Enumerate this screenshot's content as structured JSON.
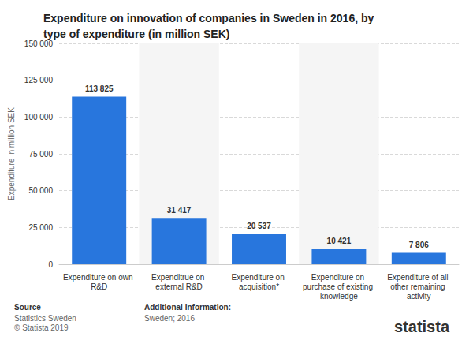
{
  "chart_data": {
    "type": "bar",
    "title": "Expenditure on innovation of companies in Sweden in 2016, by type of expenditure (in million SEK)",
    "y_label": "Expenditure in million SEK",
    "categories": [
      "Expenditure on own R&D",
      "Expenditrue on external R&D",
      "Expenditure on acquisition*",
      "Expenditure on purchase of existing knowledge",
      "Expenditure of all other remaining activity"
    ],
    "values": [
      113825,
      31417,
      20537,
      10421,
      7806
    ],
    "value_labels": [
      "113 825",
      "31 417",
      "20 537",
      "10 421",
      "7 806"
    ],
    "color": "#2876dd",
    "ylim": [
      0,
      150000
    ],
    "yticks": [
      0,
      {
        "value": 25000,
        "label": "25 000"
      },
      {
        "value": 50000,
        "label": "50 000"
      },
      {
        "value": 75000,
        "label": "75 000"
      },
      {
        "value": 100000,
        "label": "100 000"
      },
      {
        "value": 125000,
        "label": "125 000"
      },
      {
        "value": 150000,
        "label": "150 000"
      }
    ],
    "grid": true,
    "data_labels": true,
    "annotations": [
      "Source",
      "Statistics Sweden",
      "© Statista 2019",
      "Additional Information:",
      "Sweden; 2016",
      "statista"
    ]
  }
}
